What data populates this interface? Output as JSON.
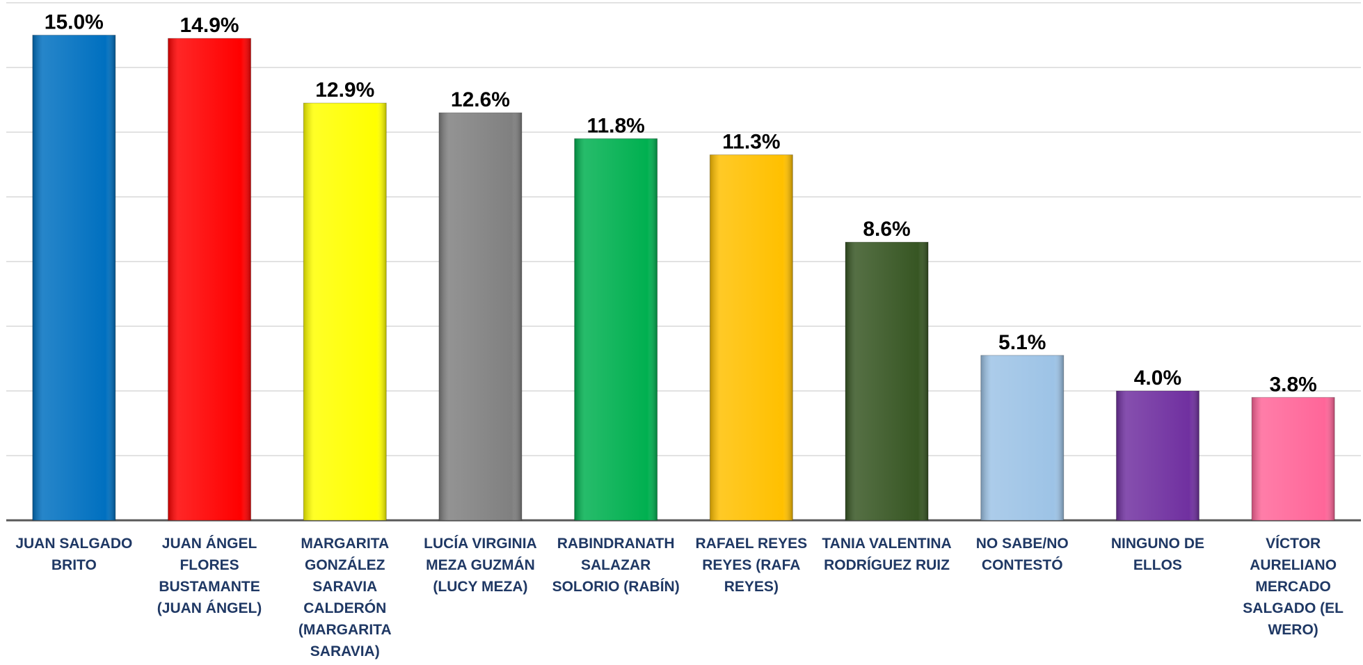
{
  "chart_data": {
    "type": "bar",
    "categories": [
      "JUAN SALGADO BRITO",
      "JUAN ÁNGEL FLORES BUSTAMANTE (JUAN ÁNGEL)",
      "MARGARITA GONZÁLEZ SARAVIA CALDERÓN (MARGARITA SARAVIA)",
      "LUCÍA VIRGINIA MEZA GUZMÁN (LUCY MEZA)",
      "RABINDRANATH SALAZAR SOLORIO (RABÍN)",
      "RAFAEL REYES REYES (RAFA REYES)",
      "TANIA VALENTINA RODRÍGUEZ RUIZ",
      "NO SABE/NO CONTESTÓ",
      "NINGUNO DE ELLOS",
      "VÍCTOR AURELIANO MERCADO SALGADO (EL WERO)"
    ],
    "values": [
      15.0,
      14.9,
      12.9,
      12.6,
      11.8,
      11.3,
      8.6,
      5.1,
      4.0,
      3.8
    ],
    "value_labels": [
      "15.0%",
      "14.9%",
      "12.9%",
      "12.6%",
      "11.8%",
      "11.3%",
      "8.6%",
      "5.1%",
      "4.0%",
      "3.8%"
    ],
    "colors": [
      "#0070c0",
      "#ff0000",
      "#ffff00",
      "#808080",
      "#00b050",
      "#ffc000",
      "#375623",
      "#9dc3e6",
      "#7030a0",
      "#ff6699"
    ],
    "ylim": [
      0,
      16
    ],
    "yticks": [
      0,
      2,
      4,
      6,
      8,
      10,
      12,
      14,
      16
    ],
    "grid": true
  }
}
